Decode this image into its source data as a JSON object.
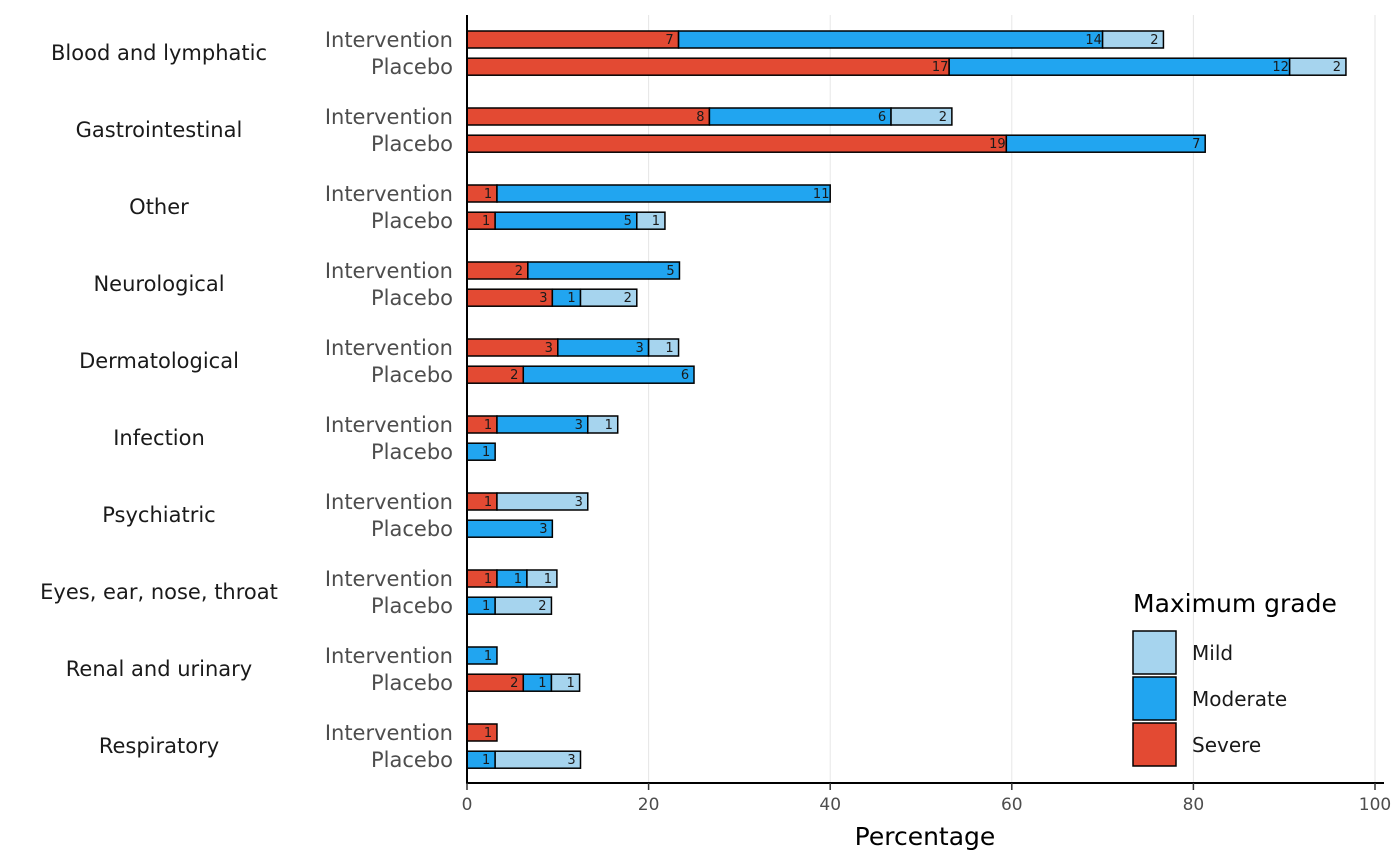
{
  "chart_data": {
    "type": "bar",
    "orientation": "horizontal",
    "stacked": true,
    "xlabel": "Percentage",
    "ylabel": "",
    "xlim": [
      0,
      100
    ],
    "x_ticks": [
      "0",
      "20",
      "40",
      "60",
      "80",
      "100"
    ],
    "grid": "vertical major lines",
    "legend": {
      "title": "Maximum grade",
      "placement": "bottom-right",
      "entries": [
        {
          "key": "mild",
          "label": "Mild"
        },
        {
          "key": "moderate",
          "label": "Moderate"
        },
        {
          "key": "severe",
          "label": "Severe"
        }
      ]
    },
    "series_order": [
      "severe",
      "moderate",
      "mild"
    ],
    "colors": {
      "severe": "#E34A33",
      "moderate": "#21A5F0",
      "mild": "#A6D4EE"
    },
    "categories": [
      {
        "name": "Blood and lymphatic",
        "arms": [
          {
            "arm": "Intervention",
            "segments": [
              {
                "grade": "severe",
                "value": 23.3,
                "count": "7"
              },
              {
                "grade": "moderate",
                "value": 46.7,
                "count": "14"
              },
              {
                "grade": "mild",
                "value": 6.7,
                "count": "2"
              }
            ]
          },
          {
            "arm": "Placebo",
            "segments": [
              {
                "grade": "severe",
                "value": 53.1,
                "count": "17"
              },
              {
                "grade": "moderate",
                "value": 37.5,
                "count": "12"
              },
              {
                "grade": "mild",
                "value": 6.2,
                "count": "2"
              }
            ]
          }
        ]
      },
      {
        "name": "Gastrointestinal",
        "arms": [
          {
            "arm": "Intervention",
            "segments": [
              {
                "grade": "severe",
                "value": 26.7,
                "count": "8"
              },
              {
                "grade": "moderate",
                "value": 20.0,
                "count": "6"
              },
              {
                "grade": "mild",
                "value": 6.7,
                "count": "2"
              }
            ]
          },
          {
            "arm": "Placebo",
            "segments": [
              {
                "grade": "severe",
                "value": 59.4,
                "count": "19"
              },
              {
                "grade": "moderate",
                "value": 21.9,
                "count": "7"
              }
            ]
          }
        ]
      },
      {
        "name": "Other",
        "arms": [
          {
            "arm": "Intervention",
            "segments": [
              {
                "grade": "severe",
                "value": 3.3,
                "count": "1"
              },
              {
                "grade": "moderate",
                "value": 36.7,
                "count": "11"
              }
            ]
          },
          {
            "arm": "Placebo",
            "segments": [
              {
                "grade": "severe",
                "value": 3.1,
                "count": "1"
              },
              {
                "grade": "moderate",
                "value": 15.6,
                "count": "5"
              },
              {
                "grade": "mild",
                "value": 3.1,
                "count": "1"
              }
            ]
          }
        ]
      },
      {
        "name": "Neurological",
        "arms": [
          {
            "arm": "Intervention",
            "segments": [
              {
                "grade": "severe",
                "value": 6.7,
                "count": "2"
              },
              {
                "grade": "moderate",
                "value": 16.7,
                "count": "5"
              }
            ]
          },
          {
            "arm": "Placebo",
            "segments": [
              {
                "grade": "severe",
                "value": 9.4,
                "count": "3"
              },
              {
                "grade": "moderate",
                "value": 3.1,
                "count": "1"
              },
              {
                "grade": "mild",
                "value": 6.2,
                "count": "2"
              }
            ]
          }
        ]
      },
      {
        "name": "Dermatological",
        "arms": [
          {
            "arm": "Intervention",
            "segments": [
              {
                "grade": "severe",
                "value": 10.0,
                "count": "3"
              },
              {
                "grade": "moderate",
                "value": 10.0,
                "count": "3"
              },
              {
                "grade": "mild",
                "value": 3.3,
                "count": "1"
              }
            ]
          },
          {
            "arm": "Placebo",
            "segments": [
              {
                "grade": "severe",
                "value": 6.2,
                "count": "2"
              },
              {
                "grade": "moderate",
                "value": 18.8,
                "count": "6"
              }
            ]
          }
        ]
      },
      {
        "name": "Infection",
        "arms": [
          {
            "arm": "Intervention",
            "segments": [
              {
                "grade": "severe",
                "value": 3.3,
                "count": "1"
              },
              {
                "grade": "moderate",
                "value": 10.0,
                "count": "3"
              },
              {
                "grade": "mild",
                "value": 3.3,
                "count": "1"
              }
            ]
          },
          {
            "arm": "Placebo",
            "segments": [
              {
                "grade": "moderate",
                "value": 3.1,
                "count": "1"
              }
            ]
          }
        ]
      },
      {
        "name": "Psychiatric",
        "arms": [
          {
            "arm": "Intervention",
            "segments": [
              {
                "grade": "severe",
                "value": 3.3,
                "count": "1"
              },
              {
                "grade": "mild",
                "value": 10.0,
                "count": "3"
              }
            ]
          },
          {
            "arm": "Placebo",
            "segments": [
              {
                "grade": "moderate",
                "value": 9.4,
                "count": "3"
              }
            ]
          }
        ]
      },
      {
        "name": "Eyes, ear, nose, throat",
        "arms": [
          {
            "arm": "Intervention",
            "segments": [
              {
                "grade": "severe",
                "value": 3.3,
                "count": "1"
              },
              {
                "grade": "moderate",
                "value": 3.3,
                "count": "1"
              },
              {
                "grade": "mild",
                "value": 3.3,
                "count": "1"
              }
            ]
          },
          {
            "arm": "Placebo",
            "segments": [
              {
                "grade": "moderate",
                "value": 3.1,
                "count": "1"
              },
              {
                "grade": "mild",
                "value": 6.2,
                "count": "2"
              }
            ]
          }
        ]
      },
      {
        "name": "Renal and urinary",
        "arms": [
          {
            "arm": "Intervention",
            "segments": [
              {
                "grade": "moderate",
                "value": 3.3,
                "count": "1"
              }
            ]
          },
          {
            "arm": "Placebo",
            "segments": [
              {
                "grade": "severe",
                "value": 6.2,
                "count": "2"
              },
              {
                "grade": "moderate",
                "value": 3.1,
                "count": "1"
              },
              {
                "grade": "mild",
                "value": 3.1,
                "count": "1"
              }
            ]
          }
        ]
      },
      {
        "name": "Respiratory",
        "arms": [
          {
            "arm": "Intervention",
            "segments": [
              {
                "grade": "severe",
                "value": 3.3,
                "count": "1"
              }
            ]
          },
          {
            "arm": "Placebo",
            "segments": [
              {
                "grade": "moderate",
                "value": 3.1,
                "count": "1"
              },
              {
                "grade": "mild",
                "value": 9.4,
                "count": "3"
              }
            ]
          }
        ]
      }
    ]
  }
}
